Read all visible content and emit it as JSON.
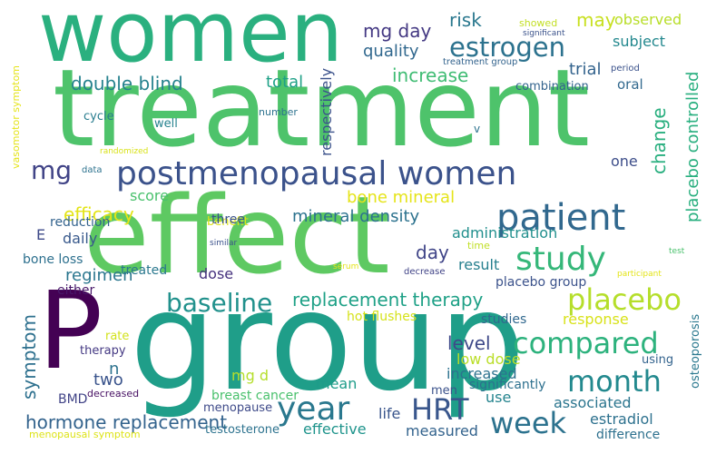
{
  "words": [
    {
      "text": "women",
      "color": "#2ab07f"
    },
    {
      "text": "treatment",
      "color": "#4ec36b"
    },
    {
      "text": "effect",
      "color": "#5ec962"
    },
    {
      "text": "group",
      "color": "#1f9e89"
    },
    {
      "text": "P",
      "color": "#440154"
    },
    {
      "text": "postmenopausal women",
      "color": "#3b528b"
    },
    {
      "text": "estrogen",
      "color": "#2c728e"
    },
    {
      "text": "patient",
      "color": "#31688e"
    },
    {
      "text": "study",
      "color": "#35b779"
    },
    {
      "text": "placebo",
      "color": "#b5de2b"
    },
    {
      "text": "year",
      "color": "#2a788e"
    },
    {
      "text": "HRT",
      "color": "#39568c"
    },
    {
      "text": "week",
      "color": "#2c728e"
    },
    {
      "text": "month",
      "color": "#23898e"
    },
    {
      "text": "compared",
      "color": "#2db27d"
    },
    {
      "text": "baseline",
      "color": "#21918c"
    },
    {
      "text": "replacement therapy",
      "color": "#1fa187"
    },
    {
      "text": "mg",
      "color": "#414487"
    },
    {
      "text": "change",
      "color": "#29af7f"
    },
    {
      "text": "increase",
      "color": "#3fbc73"
    },
    {
      "text": "double blind",
      "color": "#26828e"
    },
    {
      "text": "hormone replacement",
      "color": "#33638d"
    },
    {
      "text": "efficacy",
      "color": "#e3e418"
    },
    {
      "text": "symptom",
      "color": "#2d708e"
    },
    {
      "text": "mg day",
      "color": "#443983"
    },
    {
      "text": "risk",
      "color": "#2a788e"
    },
    {
      "text": "quality",
      "color": "#31688e"
    },
    {
      "text": "total",
      "color": "#1fa187"
    },
    {
      "text": "may",
      "color": "#c8e020"
    },
    {
      "text": "observed",
      "color": "#b8de29"
    },
    {
      "text": "subject",
      "color": "#23888e"
    },
    {
      "text": "trial",
      "color": "#33638d"
    },
    {
      "text": "placebo controlled",
      "color": "#29af7f"
    },
    {
      "text": "respectively",
      "color": "#3b528b"
    },
    {
      "text": "bone mineral",
      "color": "#e5e419"
    },
    {
      "text": "mineral density",
      "color": "#2c728e"
    },
    {
      "text": "administration",
      "color": "#218f8d"
    },
    {
      "text": "day",
      "color": "#404588"
    },
    {
      "text": "score",
      "color": "#4ac16d"
    },
    {
      "text": "daily",
      "color": "#38598c"
    },
    {
      "text": "regimen",
      "color": "#2a768e"
    },
    {
      "text": "dose",
      "color": "#46327e"
    },
    {
      "text": "result",
      "color": "#27808e"
    },
    {
      "text": "level",
      "color": "#3e4989"
    },
    {
      "text": "low dose",
      "color": "#bade28"
    },
    {
      "text": "response",
      "color": "#d8e219"
    },
    {
      "text": "increased",
      "color": "#2c728e"
    },
    {
      "text": "mg d",
      "color": "#b5de2b"
    },
    {
      "text": "mean",
      "color": "#1e9c89"
    },
    {
      "text": "associated",
      "color": "#2b758e"
    },
    {
      "text": "estradiol",
      "color": "#2d718e"
    },
    {
      "text": "effective",
      "color": "#1f948c"
    },
    {
      "text": "measured",
      "color": "#33638d"
    },
    {
      "text": "life",
      "color": "#39558c"
    },
    {
      "text": "use",
      "color": "#25848e"
    },
    {
      "text": "BMD",
      "color": "#414487"
    },
    {
      "text": "two",
      "color": "#3a548c"
    },
    {
      "text": "n",
      "color": "#2c728e"
    },
    {
      "text": "one",
      "color": "#3d4e8a"
    },
    {
      "text": "E",
      "color": "#3e4a89"
    },
    {
      "text": "reduction",
      "color": "#33638d"
    },
    {
      "text": "benefit",
      "color": "#dde318"
    },
    {
      "text": "three",
      "color": "#3b528b"
    },
    {
      "text": "bone loss",
      "color": "#2d708e"
    },
    {
      "text": "treated",
      "color": "#2a788e"
    },
    {
      "text": "either",
      "color": "#48186a"
    },
    {
      "text": "placebo group",
      "color": "#3b528b"
    },
    {
      "text": "hot flushes",
      "color": "#d5e21a"
    },
    {
      "text": "studies",
      "color": "#31688e"
    },
    {
      "text": "significantly",
      "color": "#2d708e"
    },
    {
      "text": "men",
      "color": "#3b528b"
    },
    {
      "text": "breast cancer",
      "color": "#4ac16d"
    },
    {
      "text": "menopause",
      "color": "#3e4a89"
    },
    {
      "text": "testosterone",
      "color": "#2c728e"
    },
    {
      "text": "difference",
      "color": "#2d708e"
    },
    {
      "text": "menopausal symptom",
      "color": "#dde318"
    },
    {
      "text": "vasomotor symptom",
      "color": "#e5e419"
    },
    {
      "text": "osteoporosis",
      "color": "#2a788e"
    },
    {
      "text": "therapy",
      "color": "#443983"
    },
    {
      "text": "rate",
      "color": "#d2e21b"
    },
    {
      "text": "decreased",
      "color": "#471063"
    },
    {
      "text": "using",
      "color": "#33638d"
    },
    {
      "text": "cycle",
      "color": "#287c8e"
    },
    {
      "text": "well",
      "color": "#26828e"
    },
    {
      "text": "number",
      "color": "#2c728e"
    },
    {
      "text": "randomized",
      "color": "#d8e219"
    },
    {
      "text": "data",
      "color": "#2c728e"
    },
    {
      "text": "similar",
      "color": "#3b528b"
    },
    {
      "text": "serum",
      "color": "#e5e419"
    },
    {
      "text": "decrease",
      "color": "#414487"
    },
    {
      "text": "participant",
      "color": "#e3e418"
    },
    {
      "text": "time",
      "color": "#c0df25"
    },
    {
      "text": "test",
      "color": "#4ac16d"
    },
    {
      "text": "v",
      "color": "#2c728e"
    },
    {
      "text": "combination",
      "color": "#33638d"
    },
    {
      "text": "oral",
      "color": "#31688e"
    },
    {
      "text": "period",
      "color": "#3b528b"
    },
    {
      "text": "treatment group",
      "color": "#33638d"
    },
    {
      "text": "showed",
      "color": "#c2df23"
    },
    {
      "text": "significant",
      "color": "#3b528b"
    }
  ]
}
